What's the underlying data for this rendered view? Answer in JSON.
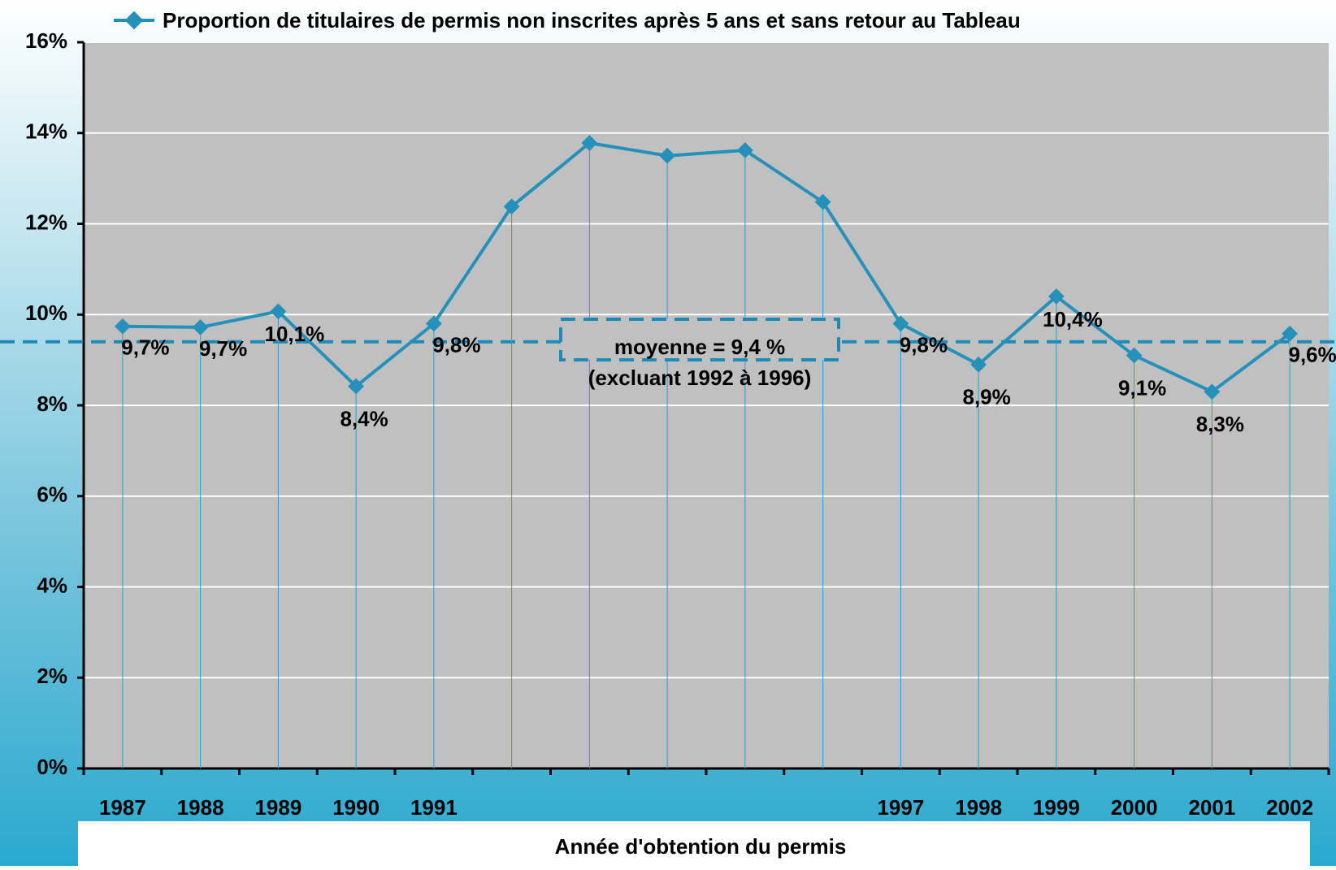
{
  "chart_data": {
    "type": "line",
    "legend_label": "Proportion de titulaires de permis non inscrites après 5 ans et sans retour au Tableau",
    "x_label": "Année d'obtention du permis",
    "categories": [
      "1987",
      "1988",
      "1989",
      "1990",
      "1991",
      null,
      null,
      null,
      null,
      null,
      "1997",
      "1998",
      "1999",
      "2000",
      "2001",
      "2002"
    ],
    "series": [
      {
        "name": "Proportion de titulaires de permis non inscrites après 5 ans et sans retour au Tableau",
        "color": "#2591bb",
        "values": [
          9.74,
          9.72,
          10.07,
          8.42,
          9.8,
          12.38,
          13.78,
          13.5,
          13.62,
          12.48,
          9.8,
          8.9,
          10.4,
          9.1,
          8.3,
          9.58
        ],
        "value_labels": [
          "9,7%",
          "9,7%",
          "10,1%",
          "8,4%",
          "9,8%",
          null,
          null,
          null,
          null,
          null,
          "9,8%",
          "8,9%",
          "10,4%",
          "9,1%",
          "8,3%",
          "9,6%"
        ]
      }
    ],
    "mean": {
      "value": 9.4,
      "label": "moyenne = 9,4 %",
      "note": "(excluant 1992 à 1996)"
    },
    "ylim": [
      0,
      16
    ],
    "yticks": [
      {
        "value": 0,
        "label": "0%"
      },
      {
        "value": 2,
        "label": "2%"
      },
      {
        "value": 4,
        "label": "4%"
      },
      {
        "value": 6,
        "label": "6%"
      },
      {
        "value": 8,
        "label": "8%"
      },
      {
        "value": 10,
        "label": "10%"
      },
      {
        "value": 12,
        "label": "12%"
      },
      {
        "value": 14,
        "label": "14%"
      },
      {
        "value": 16,
        "label": "16%"
      }
    ],
    "grid": true
  }
}
